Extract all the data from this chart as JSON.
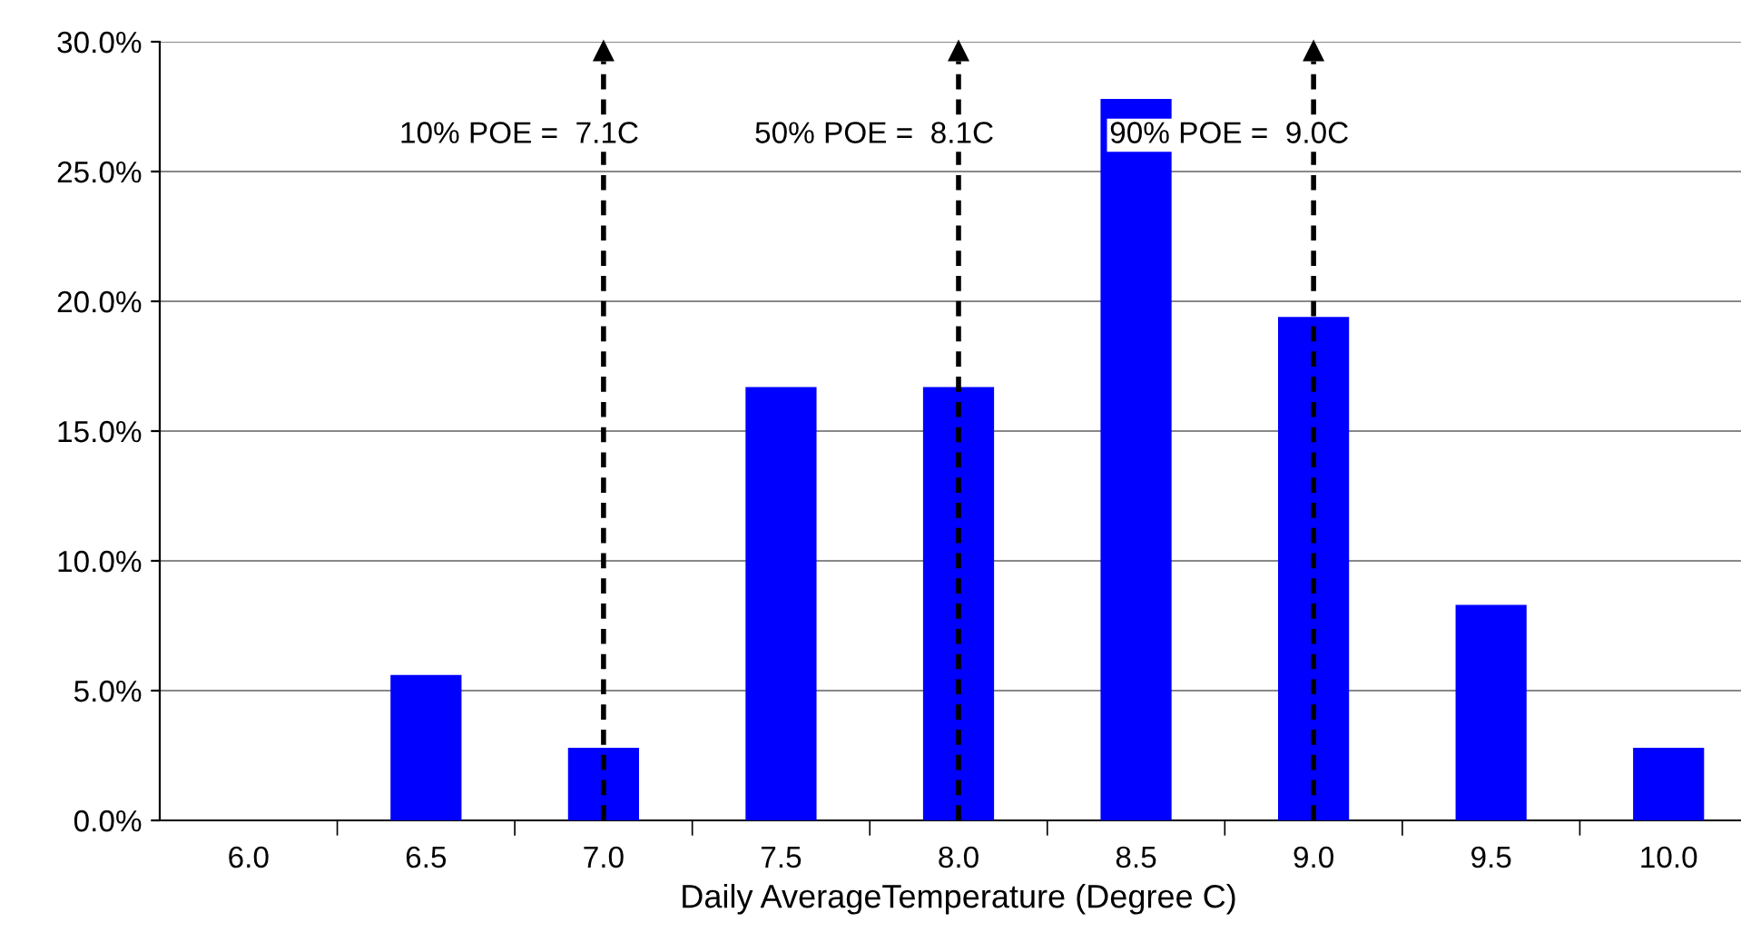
{
  "chart_data": {
    "type": "bar",
    "xlabel": "Daily AverageTemperature (Degree C)",
    "categories": [
      "6.0",
      "6.5",
      "7.0",
      "7.5",
      "8.0",
      "8.5",
      "9.0",
      "9.5",
      "10.0"
    ],
    "values": [
      0,
      5.6,
      2.8,
      16.7,
      16.7,
      27.8,
      19.4,
      8.3,
      2.8
    ],
    "color": "#0000ff",
    "ylim": [
      0,
      30
    ],
    "yticks": [
      {
        "value": 0,
        "label": "0.0%"
      },
      {
        "value": 5,
        "label": "5.0%"
      },
      {
        "value": 10,
        "label": "10.0%"
      },
      {
        "value": 15,
        "label": "15.0%"
      },
      {
        "value": 20,
        "label": "20.0%"
      },
      {
        "value": 25,
        "label": "25.0%"
      },
      {
        "value": 30,
        "label": "30.0%"
      }
    ],
    "grid": "y",
    "ref_lines": [
      {
        "axis": "x",
        "value": "7.0",
        "label": "10% POE =  7.1C",
        "color": "#000000",
        "line_style": "dashed"
      },
      {
        "axis": "x",
        "value": "8.0",
        "label": "50% POE =  8.1C",
        "color": "#000000",
        "line_style": "dashed"
      },
      {
        "axis": "x",
        "value": "9.0",
        "label": "90% POE =  9.0C",
        "color": "#000000",
        "line_style": "dashed"
      }
    ]
  }
}
